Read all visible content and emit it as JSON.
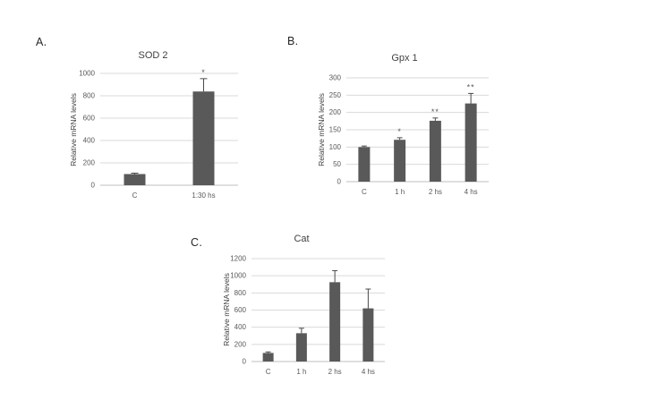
{
  "figure": {
    "background": "#ffffff"
  },
  "colors": {
    "bar": "#595959",
    "gridline": "#d9d9d9",
    "baseline": "#bfbfbf",
    "error_bar": "#4a4a4a",
    "tick_text": "#595959",
    "title_text": "#3f3f3f"
  },
  "chart_data": [
    {
      "panel": "A.",
      "type": "bar",
      "title": "SOD 2",
      "ylabel": "Relative mRNA levels",
      "xlabel": "",
      "categories": [
        "C",
        "1:30 hs"
      ],
      "values": [
        100,
        838
      ],
      "errors": [
        8,
        115
      ],
      "significance": [
        "",
        "*"
      ],
      "ylim": [
        0,
        1000
      ],
      "ytick_step": 200,
      "grid": true,
      "legend": "none"
    },
    {
      "panel": "B.",
      "type": "bar",
      "title": "Gpx 1",
      "ylabel": "Relative mRNA levels",
      "xlabel": "",
      "categories": [
        "C",
        "1 h",
        "2 hs",
        "4 hs"
      ],
      "values": [
        100,
        121,
        176,
        226
      ],
      "errors": [
        3,
        6,
        8,
        29
      ],
      "significance": [
        "",
        "*",
        "**",
        "**"
      ],
      "ylim": [
        0,
        300
      ],
      "ytick_step": 50,
      "grid": true,
      "legend": "none"
    },
    {
      "panel": "C.",
      "type": "bar",
      "title": "Cat",
      "ylabel": "Relative mRNA levels",
      "xlabel": "",
      "categories": [
        "C",
        "1 h",
        "2 hs",
        "4 hs"
      ],
      "values": [
        100,
        330,
        925,
        620
      ],
      "errors": [
        12,
        58,
        135,
        225
      ],
      "significance": [
        "",
        "",
        "",
        ""
      ],
      "ylim": [
        0,
        1200
      ],
      "ytick_step": 200,
      "grid": true,
      "legend": "none"
    }
  ]
}
